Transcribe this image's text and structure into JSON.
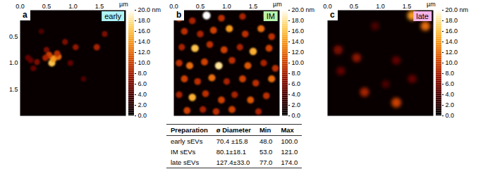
{
  "chart_data": [
    {
      "type": "image",
      "panel": "a",
      "title": "early",
      "color": "#aef3f6",
      "tick_labels": true,
      "xlabel": "µm",
      "xlim": [
        0,
        2
      ],
      "ylim": [
        0,
        2
      ],
      "xticks": [
        {
          "value": 0,
          "label": "0.0"
        },
        {
          "value": 0.5,
          "label": "0.5"
        },
        {
          "value": 1,
          "label": "1.0"
        },
        {
          "value": 1.5,
          "label": "1.5"
        }
      ],
      "yticks": [
        {
          "value": 0.5,
          "label": "0.5"
        },
        {
          "value": 1,
          "label": "1.0"
        },
        {
          "value": 1.5,
          "label": "1.5"
        }
      ],
      "particles": {
        "x": [
          0.55,
          0.63,
          0.6,
          0.48,
          0.7,
          0.32,
          0.25,
          0.85,
          0.95,
          1.05,
          1.45,
          1.6,
          0.15,
          0.4,
          1.2,
          0.2,
          0.72,
          0.5
        ],
        "y": [
          0.85,
          0.92,
          1.0,
          0.9,
          0.82,
          0.98,
          1.1,
          0.6,
          1.0,
          0.7,
          0.7,
          0.45,
          0.9,
          0.4,
          1.3,
          0.95,
          0.88,
          0.75
        ],
        "height": [
          10,
          14,
          16,
          8,
          9,
          6,
          5,
          6,
          5,
          7,
          8,
          6,
          5,
          4,
          4,
          5,
          12,
          6
        ],
        "diameter": [
          75,
          85,
          90,
          70,
          70,
          60,
          55,
          60,
          55,
          65,
          70,
          60,
          55,
          50,
          50,
          55,
          80,
          60
        ]
      },
      "colorbar": {
        "range": [
          0,
          20
        ],
        "ticks": [
          {
            "value": 0,
            "label": "0.0"
          },
          {
            "value": 2,
            "label": "2.0"
          },
          {
            "value": 4,
            "label": "4.0"
          },
          {
            "value": 6,
            "label": "6.0"
          },
          {
            "value": 8,
            "label": "8.0"
          },
          {
            "value": 10,
            "label": "10.0"
          },
          {
            "value": 12,
            "label": "12.0"
          },
          {
            "value": 14,
            "label": "14.0"
          },
          {
            "value": 16,
            "label": "16.0"
          },
          {
            "value": 18,
            "label": "18.0"
          },
          {
            "value": 20,
            "label": "20.0 nm"
          }
        ]
      }
    },
    {
      "type": "image",
      "panel": "b",
      "title": "IM",
      "color": "#b9f3ac",
      "tick_labels": "x",
      "xlabel": "µm",
      "xlim": [
        0,
        2
      ],
      "ylim": [
        0,
        2
      ],
      "xticks": [
        {
          "value": 0,
          "label": "0.0"
        },
        {
          "value": 0.5,
          "label": "0.5"
        },
        {
          "value": 1,
          "label": "1.0"
        },
        {
          "value": 1.5,
          "label": "1.5"
        }
      ],
      "particles": {
        "x": [
          0.1,
          0.35,
          0.62,
          0.9,
          1.3,
          1.75,
          0.2,
          0.5,
          0.75,
          1.05,
          1.35,
          1.65,
          1.85,
          0.15,
          0.4,
          0.68,
          0.95,
          1.25,
          1.5,
          1.8,
          0.1,
          0.3,
          0.58,
          0.85,
          1.1,
          1.4,
          1.7,
          1.92,
          0.2,
          0.45,
          0.72,
          1.0,
          1.3,
          1.55,
          1.85,
          0.1,
          0.35,
          0.6,
          0.9,
          1.15,
          1.45,
          1.75,
          0.25,
          0.55,
          0.8,
          1.1,
          1.6
        ],
        "y": [
          0.15,
          0.2,
          0.1,
          0.15,
          0.12,
          0.1,
          0.4,
          0.45,
          0.38,
          0.35,
          0.45,
          0.35,
          0.5,
          0.7,
          0.72,
          0.65,
          0.75,
          0.7,
          0.78,
          0.72,
          1.0,
          1.05,
          0.98,
          1.05,
          0.95,
          1.05,
          1.0,
          1.1,
          1.3,
          1.35,
          1.28,
          1.35,
          1.3,
          1.38,
          1.3,
          1.6,
          1.65,
          1.58,
          1.7,
          1.6,
          1.7,
          1.62,
          1.9,
          1.88,
          1.92,
          1.88,
          1.92
        ],
        "height": [
          10,
          8,
          20,
          9,
          8,
          7,
          9,
          8,
          10,
          14,
          9,
          12,
          9,
          8,
          16,
          9,
          10,
          8,
          15,
          10,
          9,
          12,
          10,
          18,
          9,
          11,
          8,
          9,
          10,
          9,
          12,
          8,
          10,
          9,
          12,
          8,
          15,
          9,
          10,
          8,
          11,
          9,
          10,
          8,
          9,
          10,
          8
        ],
        "diameter": [
          90,
          80,
          110,
          80,
          75,
          70,
          80,
          80,
          85,
          90,
          80,
          90,
          80,
          75,
          100,
          80,
          85,
          75,
          95,
          85,
          80,
          90,
          85,
          100,
          80,
          85,
          75,
          80,
          85,
          80,
          90,
          75,
          85,
          80,
          90,
          75,
          95,
          80,
          85,
          75,
          85,
          80,
          85,
          75,
          80,
          85,
          75
        ]
      },
      "colorbar": {
        "range": [
          0,
          20
        ],
        "ticks": [
          {
            "value": 0,
            "label": "0.0"
          },
          {
            "value": 2,
            "label": "2.0"
          },
          {
            "value": 4,
            "label": "4.0"
          },
          {
            "value": 6,
            "label": "6.0"
          },
          {
            "value": 8,
            "label": "8.0"
          },
          {
            "value": 10,
            "label": "10.0"
          },
          {
            "value": 12,
            "label": "12.0"
          },
          {
            "value": 14,
            "label": "14.0"
          },
          {
            "value": 16,
            "label": "16.0"
          },
          {
            "value": 18,
            "label": "18.0"
          },
          {
            "value": 20,
            "label": "20.0 nm"
          }
        ]
      }
    },
    {
      "type": "image",
      "panel": "c",
      "title": "late",
      "color": "#f6b4ea",
      "tick_labels": "x",
      "xlabel": "µm",
      "xlim": [
        0,
        2
      ],
      "ylim": [
        0,
        2
      ],
      "xticks": [
        {
          "value": 0,
          "label": "0.0"
        },
        {
          "value": 0.5,
          "label": "0.5"
        },
        {
          "value": 1,
          "label": "1.0"
        },
        {
          "value": 1.5,
          "label": "1.5"
        }
      ],
      "particles": {
        "x": [
          1.6,
          1.85,
          0.2,
          0.55,
          1.3,
          0.25,
          0.7,
          1.3,
          1.6,
          0.9,
          1.1
        ],
        "y": [
          0.1,
          0.3,
          0.75,
          0.9,
          0.95,
          1.15,
          1.55,
          1.75,
          1.3,
          0.3,
          1.4
        ],
        "height": [
          14,
          12,
          6,
          7,
          5,
          5,
          8,
          10,
          5,
          4,
          4
        ],
        "diameter": [
          170,
          160,
          150,
          140,
          130,
          130,
          150,
          170,
          130,
          120,
          110
        ]
      },
      "colorbar": {
        "range": [
          0,
          20
        ],
        "ticks": [
          {
            "value": 0,
            "label": "0.0"
          },
          {
            "value": 2,
            "label": "2.0"
          },
          {
            "value": 4,
            "label": "4.0"
          },
          {
            "value": 6,
            "label": "6.0"
          },
          {
            "value": 8,
            "label": "8.0"
          },
          {
            "value": 10,
            "label": "10.0"
          },
          {
            "value": 12,
            "label": "12.0"
          },
          {
            "value": 14,
            "label": "14.0"
          },
          {
            "value": 16,
            "label": "16.0"
          },
          {
            "value": 18,
            "label": "18.0"
          },
          {
            "value": 20,
            "label": "20.0 nm"
          }
        ]
      }
    }
  ],
  "table": {
    "columns": [
      "Preparation",
      "ø Diameter",
      "Min",
      "Max"
    ],
    "rows": [
      [
        "early sEVs",
        "70.4 ±15.8",
        "48.0",
        "100.0"
      ],
      [
        "IM sEVs",
        "80.1±18.1",
        "53.0",
        "121.0"
      ],
      [
        "late sEVs",
        "127.4±33.0",
        "77.0",
        "174.0"
      ]
    ]
  }
}
